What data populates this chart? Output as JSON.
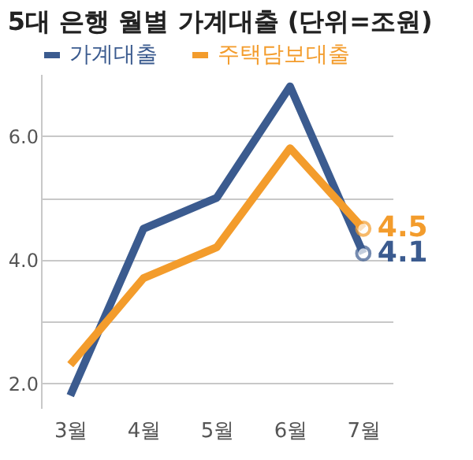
{
  "chart_data": {
    "type": "line",
    "title": "5대 은행 월별 가계대출 (단위=조원)",
    "categories": [
      "3월",
      "4월",
      "5월",
      "6월",
      "7월"
    ],
    "series": [
      {
        "name": "가계대출",
        "color": "#3b5b8f",
        "values": [
          1.8,
          4.5,
          5.0,
          6.8,
          4.1
        ],
        "value_labels": [
          null,
          null,
          null,
          null,
          "4.1"
        ]
      },
      {
        "name": "주택담보대출",
        "color": "#f39c2c",
        "values": [
          2.3,
          3.7,
          4.2,
          5.8,
          4.5
        ],
        "value_labels": [
          null,
          null,
          null,
          null,
          "4.5"
        ]
      }
    ],
    "ylim": [
      1.6,
      7.0
    ],
    "yticks": [
      {
        "value": 2,
        "label": "2.0"
      },
      {
        "value": 3,
        "label": null
      },
      {
        "value": 4,
        "label": "4.0"
      },
      {
        "value": 5,
        "label": null
      },
      {
        "value": 6,
        "label": "6.0"
      }
    ],
    "grid": "y",
    "legend": "top left",
    "line_style": "solid"
  }
}
